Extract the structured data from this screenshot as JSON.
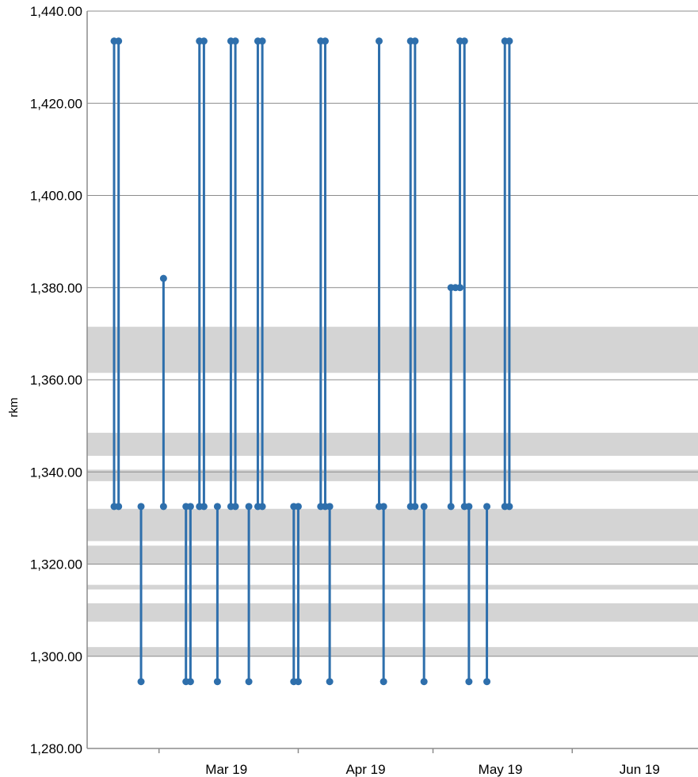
{
  "chart_data": {
    "type": "line",
    "title": "",
    "xlabel": "",
    "ylabel": "rkm",
    "ylim": [
      1280,
      1440
    ],
    "yticks": [
      "1,280.00",
      "1,300.00",
      "1,320.00",
      "1,340.00",
      "1,360.00",
      "1,380.00",
      "1,400.00",
      "1,420.00",
      "1,440.00"
    ],
    "ytick_values": [
      1280,
      1300,
      1320,
      1340,
      1360,
      1380,
      1400,
      1420,
      1440
    ],
    "xlim": [
      "2019-02-14",
      "2019-06-30"
    ],
    "xticks": [
      {
        "date": "2019-03-17",
        "label": "Mar 19"
      },
      {
        "date": "2019-04-17",
        "label": "Apr 19"
      },
      {
        "date": "2019-05-17",
        "label": "May 19"
      },
      {
        "date": "2019-06-17",
        "label": "Jun 19"
      }
    ],
    "x_category_boundaries": [
      "2019-03-02",
      "2019-04-02",
      "2019-05-02",
      "2019-06-02"
    ],
    "shaded_bands": [
      {
        "from": 1361.5,
        "to": 1371.5
      },
      {
        "from": 1343.5,
        "to": 1348.5
      },
      {
        "from": 1338,
        "to": 1340.5
      },
      {
        "from": 1325,
        "to": 1332
      },
      {
        "from": 1320,
        "to": 1324
      },
      {
        "from": 1314.5,
        "to": 1315.5
      },
      {
        "from": 1307.5,
        "to": 1311.5
      },
      {
        "from": 1300,
        "to": 1302
      }
    ],
    "grid": true,
    "legend": "none",
    "series_color": "#2E6FAC",
    "band_color": "#D4D4D4",
    "segments": [
      {
        "x": "2019-02-20",
        "y": [
          1433.5,
          1332.5
        ]
      },
      {
        "x": "2019-02-21",
        "y": [
          1433.5,
          1332.5
        ]
      },
      {
        "x": "2019-02-26",
        "y": [
          1332.5,
          1294.5
        ]
      },
      {
        "x": "2019-03-03",
        "y": [
          1382,
          1332.5
        ]
      },
      {
        "x": "2019-03-08",
        "y": [
          1332.5,
          1294.5
        ]
      },
      {
        "x": "2019-03-09",
        "y": [
          1332.5,
          1294.5
        ]
      },
      {
        "x": "2019-03-11",
        "y": [
          1433.5,
          1332.5
        ]
      },
      {
        "x": "2019-03-12",
        "y": [
          1433.5,
          1332.5
        ]
      },
      {
        "x": "2019-03-15",
        "y": [
          1332.5,
          1294.5
        ]
      },
      {
        "x": "2019-03-18",
        "y": [
          1433.5,
          1332.5
        ]
      },
      {
        "x": "2019-03-19",
        "y": [
          1433.5,
          1332.5
        ]
      },
      {
        "x": "2019-03-22",
        "y": [
          1332.5,
          1294.5
        ]
      },
      {
        "x": "2019-03-24",
        "y": [
          1433.5,
          1332.5
        ]
      },
      {
        "x": "2019-03-25",
        "y": [
          1433.5,
          1332.5
        ]
      },
      {
        "x": "2019-04-01",
        "y": [
          1332.5,
          1294.5
        ]
      },
      {
        "x": "2019-04-02",
        "y": [
          1332.5,
          1294.5
        ]
      },
      {
        "x": "2019-04-07",
        "y": [
          1433.5,
          1332.5
        ]
      },
      {
        "x": "2019-04-08",
        "y": [
          1433.5,
          1332.5
        ]
      },
      {
        "x": "2019-04-09",
        "y": [
          1332.5,
          1294.5
        ]
      },
      {
        "x": "2019-04-20",
        "y": [
          1433.5,
          1332.5
        ]
      },
      {
        "x": "2019-04-21",
        "y": [
          1332.5,
          1294.5
        ]
      },
      {
        "x": "2019-04-27",
        "y": [
          1433.5,
          1332.5
        ]
      },
      {
        "x": "2019-04-28",
        "y": [
          1433.5,
          1332.5
        ]
      },
      {
        "x": "2019-04-30",
        "y": [
          1332.5,
          1294.5
        ]
      },
      {
        "x": "2019-05-06",
        "y": [
          1380,
          1332.5
        ]
      },
      {
        "x": "2019-05-08",
        "y": [
          1433.5,
          1380
        ]
      },
      {
        "x": "2019-05-09",
        "y": [
          1433.5,
          1332.5
        ]
      },
      {
        "x": "2019-05-10",
        "y": [
          1332.5,
          1294.5
        ]
      },
      {
        "x": "2019-05-14",
        "y": [
          1332.5,
          1294.5
        ]
      },
      {
        "x": "2019-05-18",
        "y": [
          1433.5,
          1332.5
        ]
      },
      {
        "x": "2019-05-19",
        "y": [
          1433.5,
          1332.5
        ]
      }
    ],
    "extra_points": [
      {
        "x": "2019-05-07",
        "y": 1380
      }
    ]
  }
}
